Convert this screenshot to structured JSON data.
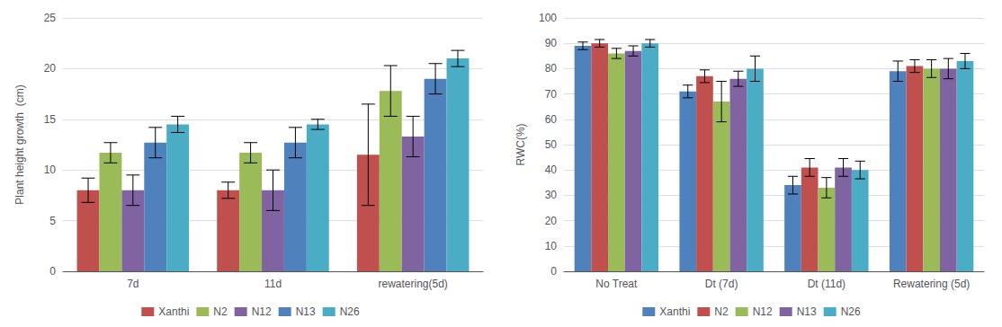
{
  "chart_data": [
    {
      "type": "bar",
      "ylabel": "Plant height growth  (cm)",
      "categories": [
        "7d",
        "11d",
        "rewatering(5d)"
      ],
      "series": [
        {
          "name": "Xanthi",
          "color": "#C0504D",
          "values": [
            8.0,
            8.0,
            11.5
          ],
          "errors": [
            1.2,
            0.8,
            5.0
          ]
        },
        {
          "name": "N2",
          "color": "#9BBB59",
          "values": [
            11.7,
            11.7,
            17.8
          ],
          "errors": [
            1.0,
            1.0,
            2.5
          ]
        },
        {
          "name": "N12",
          "color": "#8064A2",
          "values": [
            8.0,
            8.0,
            13.3
          ],
          "errors": [
            1.5,
            2.0,
            2.0
          ]
        },
        {
          "name": "N13",
          "color": "#4F81BD",
          "values": [
            12.7,
            12.7,
            19.0
          ],
          "errors": [
            1.5,
            1.5,
            1.5
          ]
        },
        {
          "name": "N26",
          "color": "#4BACC6",
          "values": [
            14.5,
            14.5,
            21.0
          ],
          "errors": [
            0.8,
            0.5,
            0.8
          ]
        }
      ],
      "ylim": [
        0,
        25
      ],
      "yticks": [
        0,
        5,
        10,
        15,
        20,
        25
      ],
      "grid": true,
      "legend": "bottom"
    },
    {
      "type": "bar",
      "ylabel": "RWC(%)",
      "categories": [
        "No Treat",
        "Dt (7d)",
        "Dt (11d)",
        "Rewatering (5d)"
      ],
      "series": [
        {
          "name": "Xanthi",
          "color": "#4F81BD",
          "values": [
            89.0,
            71.0,
            34.0,
            79.0
          ],
          "errors": [
            1.5,
            2.5,
            3.5,
            4.0
          ]
        },
        {
          "name": "N2",
          "color": "#C0504D",
          "values": [
            90.0,
            77.0,
            41.0,
            81.0
          ],
          "errors": [
            1.5,
            2.5,
            3.5,
            2.5
          ]
        },
        {
          "name": "N12",
          "color": "#9BBB59",
          "values": [
            86.0,
            67.0,
            33.0,
            80.0
          ],
          "errors": [
            2.0,
            8.0,
            4.0,
            3.5
          ]
        },
        {
          "name": "N13",
          "color": "#8064A2",
          "values": [
            87.0,
            76.0,
            41.0,
            80.0
          ],
          "errors": [
            2.0,
            3.0,
            3.5,
            4.0
          ]
        },
        {
          "name": "N26",
          "color": "#4BACC6",
          "values": [
            90.0,
            80.0,
            40.0,
            83.0
          ],
          "errors": [
            1.5,
            5.0,
            3.5,
            3.0
          ]
        }
      ],
      "ylim": [
        0,
        100
      ],
      "yticks": [
        0,
        10,
        20,
        30,
        40,
        50,
        60,
        70,
        80,
        90,
        100
      ],
      "grid": true,
      "legend": "bottom"
    }
  ]
}
